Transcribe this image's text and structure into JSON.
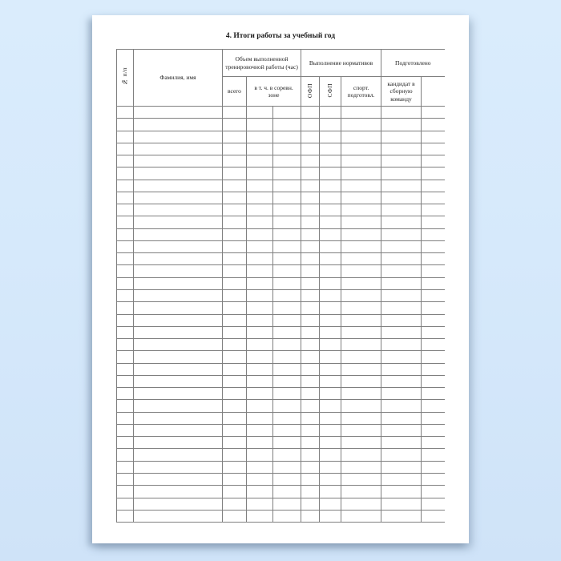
{
  "document": {
    "title": "4. Итоги работы за учебный год"
  },
  "table": {
    "header": {
      "row_number": "№ п/п",
      "name": "Фамилия, имя",
      "training_volume": "Объем выполненной тренировочной работы (час)",
      "norms": "Выполнение нормативов",
      "prepared": "Подготовлено",
      "total": "всего",
      "competition_zone": "в т. ч. в соревн. зоне",
      "ofp": "ОФП",
      "sfp": "СФП",
      "sport_readiness": "спорт. подготовл.",
      "team_candidate": "кандидат в сборную команду",
      "blank": ""
    },
    "row_count": 34,
    "column_count": 10,
    "cells": []
  },
  "colors": {
    "background": "#d6e9fb",
    "page": "#ffffff",
    "border": "#7f7f7f",
    "text": "#1c1c1c"
  }
}
